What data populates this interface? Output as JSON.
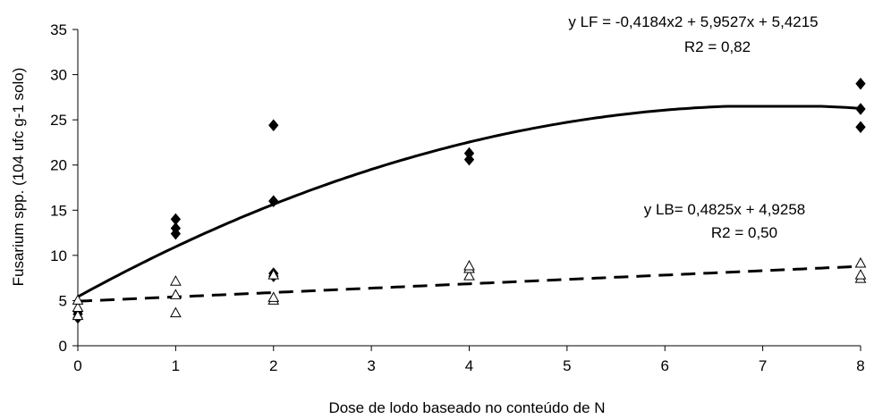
{
  "chart_data": {
    "type": "scatter",
    "xlabel": "Dose de lodo baseado no conteúdo de N",
    "ylabel": "Fusarium spp. (104 ufc g-1 solo)",
    "xlim": [
      0,
      8
    ],
    "ylim": [
      0,
      35
    ],
    "xticks": [
      0,
      1,
      2,
      3,
      4,
      5,
      6,
      7,
      8
    ],
    "yticks": [
      0,
      5,
      10,
      15,
      20,
      25,
      30,
      35
    ],
    "grid": false,
    "series": [
      {
        "marker": "filled-diamond",
        "color": "#000000",
        "points": [
          [
            0,
            3.1
          ],
          [
            0,
            3.5
          ],
          [
            0,
            3.8
          ],
          [
            1,
            12.4
          ],
          [
            1,
            13.0
          ],
          [
            1,
            14.0
          ],
          [
            2,
            7.7
          ],
          [
            2,
            8.0
          ],
          [
            2,
            16.0
          ],
          [
            2,
            24.4
          ],
          [
            4,
            20.6
          ],
          [
            4,
            21.3
          ],
          [
            8,
            24.2
          ],
          [
            8,
            26.2
          ],
          [
            8,
            29.0
          ]
        ]
      },
      {
        "marker": "open-triangle",
        "color": "#000000",
        "points": [
          [
            0,
            3.3
          ],
          [
            0,
            4.2
          ],
          [
            0,
            5.0
          ],
          [
            1,
            3.6
          ],
          [
            1,
            5.6
          ],
          [
            1,
            7.1
          ],
          [
            2,
            5.0
          ],
          [
            2,
            5.3
          ],
          [
            2,
            7.8
          ],
          [
            4,
            7.7
          ],
          [
            4,
            8.5
          ],
          [
            4,
            8.8
          ],
          [
            8,
            7.4
          ],
          [
            8,
            7.8
          ],
          [
            8,
            9.1
          ]
        ]
      }
    ],
    "trendlines": [
      {
        "kind": "polynomial",
        "coefficients": [
          5.4215,
          5.9527,
          -0.4184
        ],
        "style": "solid",
        "plateau": 26.5
      },
      {
        "kind": "linear",
        "coefficients": [
          4.9258,
          0.4825
        ],
        "style": "dashed"
      }
    ],
    "annotations": {
      "lf_equation": "y LF = -0,4184x2 + 5,9527x + 5,4215",
      "lf_r2": "R2 = 0,82",
      "lb_equation": "y LB= 0,4825x + 4,9258",
      "lb_r2": "R2 = 0,50"
    }
  }
}
